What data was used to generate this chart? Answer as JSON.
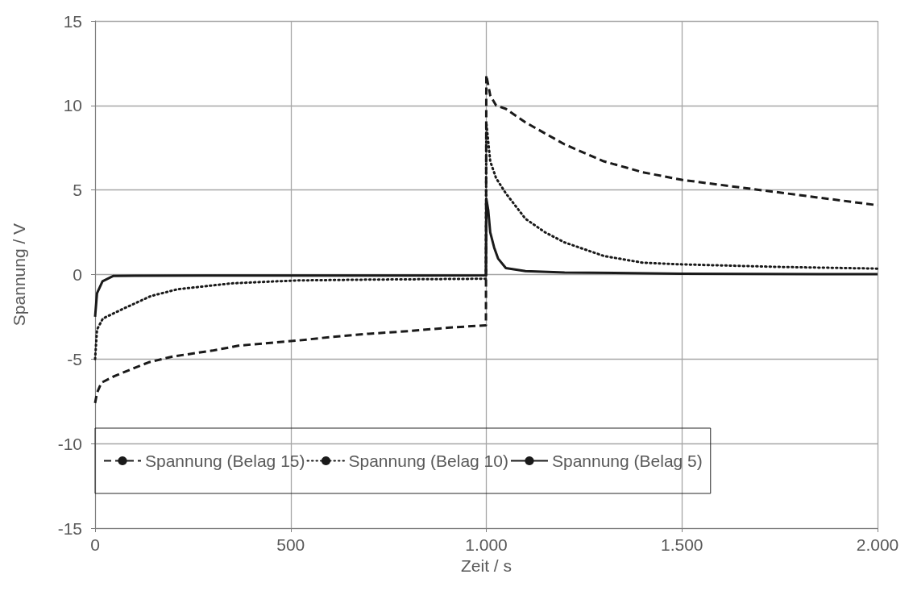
{
  "chart_data": {
    "type": "line",
    "xlabel": "Zeit / s",
    "ylabel": "Spannung / V",
    "xlim": [
      0,
      2000
    ],
    "xticks": [
      0,
      500,
      {
        "value": 1000,
        "label": "1.000"
      },
      {
        "value": 1500,
        "label": "1.500"
      },
      {
        "value": 2000,
        "label": "2.000"
      }
    ],
    "ylim": [
      -15,
      15
    ],
    "yticks": [
      -15,
      -10,
      -5,
      0,
      5,
      10,
      15
    ],
    "grid": true,
    "legend": "bottom",
    "marker": "none",
    "series": [
      {
        "name": "Spannung (Belag 15)",
        "color": "#1a1a1a",
        "line_style": "dashed",
        "x": [
          0,
          5,
          16,
          50,
          136,
          198,
          300,
          369,
          520,
          600,
          700,
          800,
          900,
          999,
          1000,
          1010,
          1025,
          1050,
          1100,
          1200,
          1300,
          1400,
          1500,
          1600,
          1700,
          1800,
          1900,
          2000
        ],
        "values": [
          -7.6,
          -7.0,
          -6.4,
          -6.0,
          -5.2,
          -4.85,
          -4.5,
          -4.2,
          -3.9,
          -3.7,
          -3.5,
          -3.35,
          -3.15,
          -3.0,
          11.8,
          10.6,
          10.0,
          9.8,
          9.0,
          7.7,
          6.7,
          6.05,
          5.6,
          5.3,
          5.0,
          4.7,
          4.4,
          4.1
        ]
      },
      {
        "name": "Spannung (Belag 10)",
        "color": "#1a1a1a",
        "line_style": "dotted",
        "x": [
          0,
          5,
          20,
          74,
          143,
          211,
          349,
          514,
          700,
          999,
          1000,
          1010,
          1025,
          1050,
          1100,
          1150,
          1200,
          1300,
          1400,
          1500,
          1750,
          2000
        ],
        "values": [
          -5.0,
          -3.25,
          -2.6,
          -2.0,
          -1.27,
          -0.87,
          -0.52,
          -0.35,
          -0.3,
          -0.25,
          9.0,
          6.7,
          5.7,
          4.8,
          3.3,
          2.5,
          1.9,
          1.1,
          0.7,
          0.6,
          0.45,
          0.35
        ]
      },
      {
        "name": "Spannung (Belag 5)",
        "color": "#1a1a1a",
        "line_style": "solid",
        "x": [
          0,
          5,
          19,
          47,
          100,
          500,
          999,
          1000,
          1005,
          1010,
          1020,
          1030,
          1050,
          1100,
          1200,
          1500,
          2000
        ],
        "values": [
          -2.5,
          -1.1,
          -0.4,
          -0.08,
          -0.07,
          -0.06,
          -0.05,
          4.5,
          3.8,
          2.5,
          1.6,
          0.95,
          0.38,
          0.2,
          0.12,
          0.05,
          0.02
        ]
      }
    ]
  }
}
